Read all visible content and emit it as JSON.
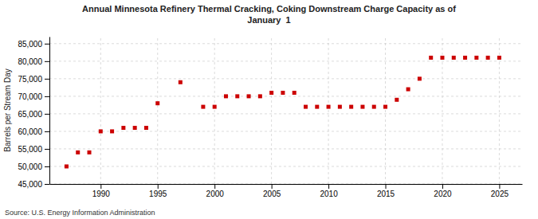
{
  "chart_data": {
    "type": "scatter",
    "title": "Annual Minnesota Refinery Thermal Cracking, Coking Downstream Charge Capacity as of\nJanuary  1",
    "ylabel": "Barrels per Stream Day",
    "source": "Source: U.S. Energy Information Administration",
    "color": "#cc0000",
    "marker": "square",
    "grid": true,
    "xlim": [
      1985.5,
      2027
    ],
    "ylim": [
      45000,
      87000
    ],
    "xticks": [
      1990,
      1995,
      2000,
      2005,
      2010,
      2015,
      2020,
      2025
    ],
    "yticks": [
      {
        "value": 45000,
        "label": "45,000"
      },
      {
        "value": 50000,
        "label": "50,000"
      },
      {
        "value": 55000,
        "label": "55,000"
      },
      {
        "value": 60000,
        "label": "60,000"
      },
      {
        "value": 65000,
        "label": "65,000"
      },
      {
        "value": 70000,
        "label": "70,000"
      },
      {
        "value": 75000,
        "label": "75,000"
      },
      {
        "value": 80000,
        "label": "80,000"
      },
      {
        "value": 85000,
        "label": "85,000"
      }
    ],
    "x": [
      1987,
      1988,
      1989,
      1990,
      1991,
      1992,
      1993,
      1994,
      1995,
      1997,
      1999,
      2000,
      2001,
      2002,
      2003,
      2004,
      2005,
      2006,
      2007,
      2008,
      2009,
      2010,
      2011,
      2012,
      2013,
      2014,
      2015,
      2016,
      2017,
      2018,
      2019,
      2020,
      2021,
      2022,
      2023,
      2024,
      2025
    ],
    "values": [
      50000,
      54000,
      54000,
      60000,
      60000,
      61000,
      61000,
      61000,
      68000,
      74000,
      67000,
      67000,
      70000,
      70000,
      70000,
      70000,
      71000,
      71000,
      71000,
      67000,
      67000,
      67000,
      67000,
      67000,
      67000,
      67000,
      67000,
      69000,
      72000,
      75000,
      81000,
      81000,
      81000,
      81000,
      81000,
      81000,
      81000
    ]
  }
}
